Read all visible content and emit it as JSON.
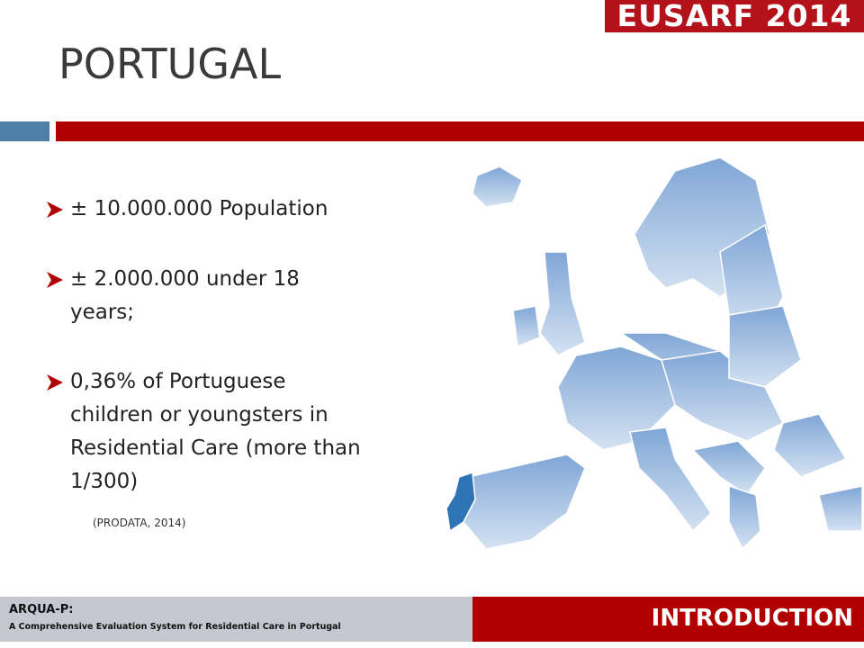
{
  "header": {
    "logo": "EUSARF 2014",
    "title": "PORTUGAL"
  },
  "bullets": [
    "± 10.000.000 Population",
    "±  2.000.000 under 18 years;",
    "0,36% of Portuguese children or youngsters in Residential Care (more than 1/300)"
  ],
  "source": "(PRODATA, 2014)",
  "footer": {
    "project": "ARQUA-P:",
    "subtitle": "A Comprehensive Evaluation System for Residential Care in Portugal",
    "section": "INTRODUCTION"
  }
}
